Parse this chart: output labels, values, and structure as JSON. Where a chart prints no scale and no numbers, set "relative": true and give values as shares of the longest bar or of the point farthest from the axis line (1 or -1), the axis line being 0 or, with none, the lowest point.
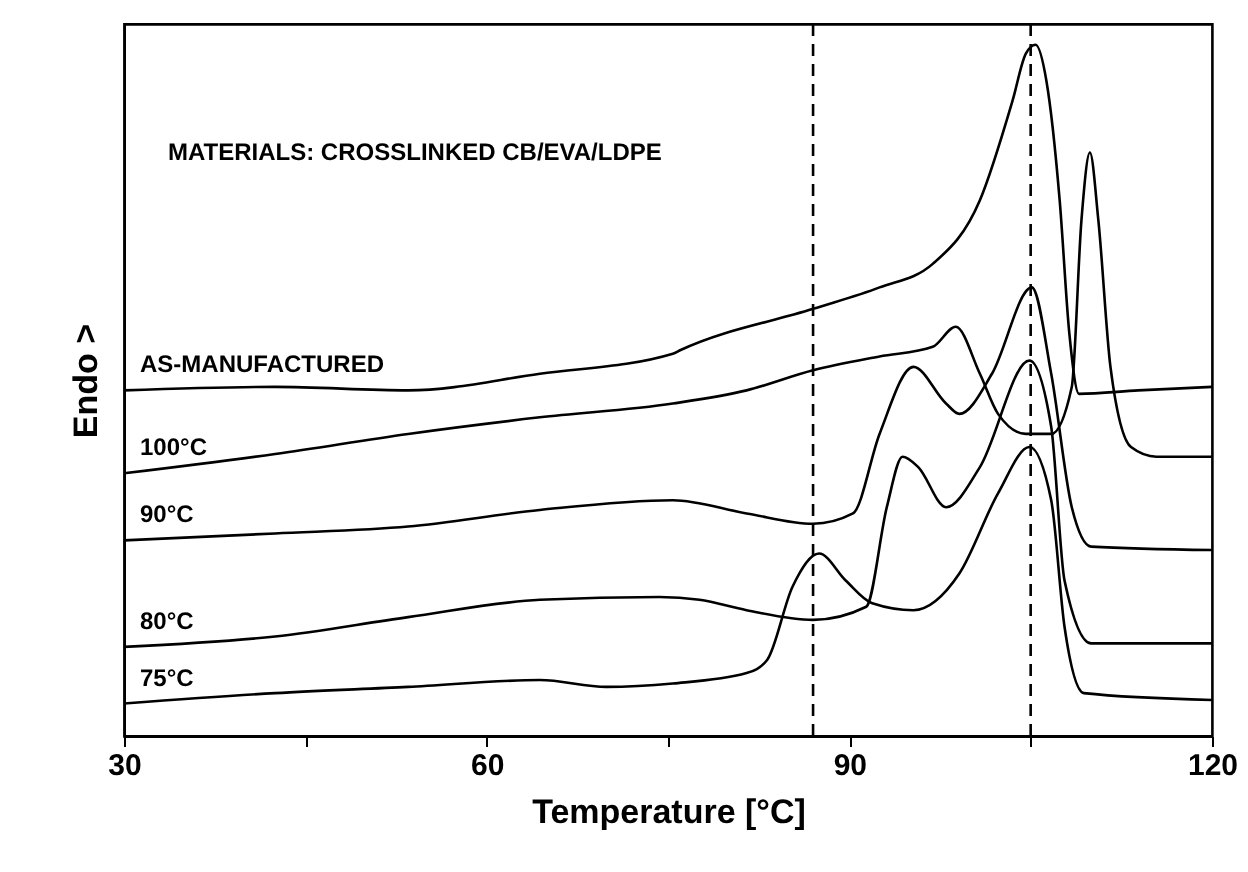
{
  "chart_data": {
    "type": "line",
    "relative": true,
    "xlabel": "Temperature [°C]",
    "ylabel": "Endo >",
    "xlim": [
      30,
      120
    ],
    "xticks": [
      30,
      {
        "value": 45,
        "label": null
      },
      60,
      {
        "value": 75,
        "label": null
      },
      90,
      {
        "value": 105,
        "label": null
      },
      120
    ],
    "grid": false,
    "marker": "none",
    "line_style": "solid",
    "annotations": [
      "MATERIALS: CROSSLINKED CB/EVA/LDPE"
    ],
    "ref_lines": [
      {
        "axis": "x",
        "value": 87,
        "label": null,
        "color": "#000000",
        "line_style": "dashed"
      },
      {
        "axis": "x",
        "value": 105,
        "label": null,
        "color": "#000000",
        "line_style": "dashed"
      }
    ],
    "series": [
      {
        "name": "AS-MANUFACTURED",
        "color": "#000000",
        "x": [
          30,
          42.5,
          53.5,
          64.4,
          75.4,
          76,
          87,
          92.5,
          96.9,
          100.8,
          103.5,
          104.6,
          105.4,
          106.3,
          107.4,
          108.2,
          109,
          113.9,
          120
        ],
        "values": [
          0.5,
          0.505,
          0.5,
          0.524,
          0.553,
          0.558,
          0.618,
          0.649,
          0.683,
          0.775,
          0.919,
          0.987,
          1.0,
          0.948,
          0.775,
          0.582,
          0.495,
          0.5,
          0.505
        ]
      },
      {
        "name": "100°C",
        "color": "#000000",
        "x": [
          30,
          42.5,
          53.5,
          64.4,
          75.4,
          81.5,
          87,
          92.5,
          96.9,
          98.8,
          100.8,
          102.3,
          104.6,
          106.7,
          108.4,
          109.2,
          109.9,
          110.6,
          111.6,
          113.3,
          115.4,
          120
        ],
        "values": [
          0.38,
          0.408,
          0.437,
          0.461,
          0.481,
          0.5,
          0.529,
          0.549,
          0.563,
          0.592,
          0.524,
          0.466,
          0.437,
          0.437,
          0.505,
          0.746,
          0.844,
          0.746,
          0.534,
          0.418,
          0.404,
          0.404
        ]
      },
      {
        "name": "90°C",
        "color": "#000000",
        "x": [
          30,
          42.5,
          53.5,
          64.4,
          75.4,
          81.5,
          87,
          90.3,
          92.5,
          95.3,
          98,
          99.1,
          101.8,
          105.1,
          106.7,
          108.4,
          110,
          120
        ],
        "values": [
          0.283,
          0.293,
          0.303,
          0.327,
          0.341,
          0.322,
          0.307,
          0.322,
          0.437,
          0.534,
          0.481,
          0.466,
          0.524,
          0.649,
          0.524,
          0.331,
          0.274,
          0.269
        ]
      },
      {
        "name": "80°C",
        "color": "#000000",
        "x": [
          30,
          42.5,
          53.5,
          64.4,
          74.3,
          77.6,
          81.5,
          87,
          91.4,
          93.1,
          94.4,
          95.7,
          98,
          100.8,
          104.9,
          106.7,
          107.8,
          110,
          120
        ],
        "values": [
          0.129,
          0.144,
          0.172,
          0.197,
          0.201,
          0.197,
          0.182,
          0.168,
          0.187,
          0.331,
          0.404,
          0.389,
          0.331,
          0.389,
          0.543,
          0.447,
          0.225,
          0.134,
          0.134
        ]
      },
      {
        "name": "75°C",
        "color": "#000000",
        "x": [
          30,
          42.5,
          53.5,
          64.4,
          69.9,
          75.4,
          81.5,
          83.2,
          85.3,
          87.5,
          89.7,
          91.9,
          95.3,
          99.1,
          102.3,
          104.9,
          106.7,
          107.8,
          109.4,
          120
        ],
        "values": [
          0.047,
          0.062,
          0.071,
          0.081,
          0.071,
          0.076,
          0.091,
          0.11,
          0.216,
          0.264,
          0.225,
          0.192,
          0.182,
          0.235,
          0.351,
          0.418,
          0.341,
          0.158,
          0.062,
          0.052
        ]
      }
    ]
  }
}
